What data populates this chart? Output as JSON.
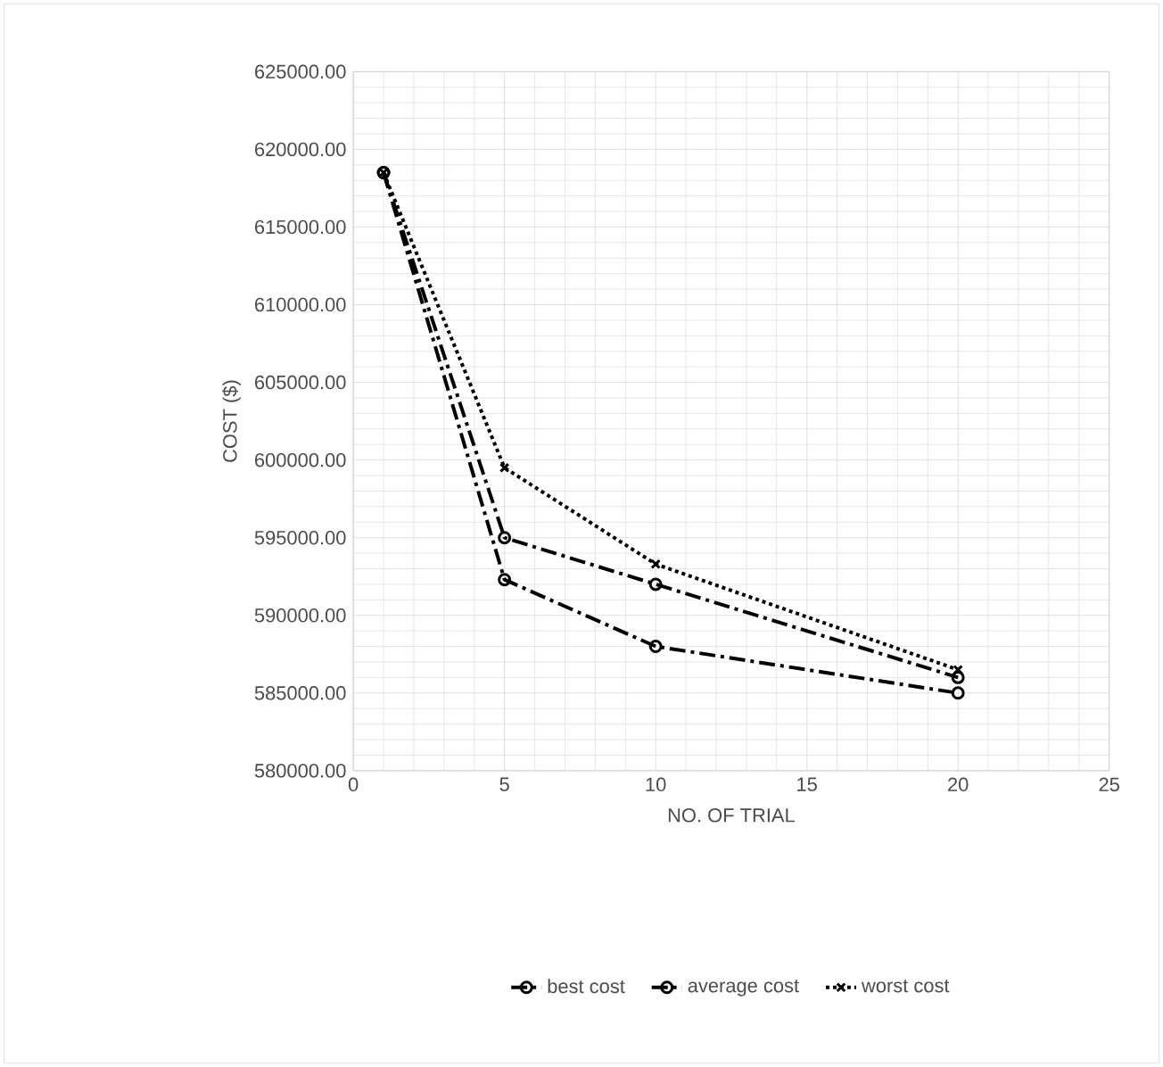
{
  "chart_data": {
    "type": "line",
    "xlabel": "NO. OF TRIAL",
    "ylabel": "COST ($)",
    "x": [
      1,
      5,
      10,
      20
    ],
    "series": [
      {
        "name": "best cost",
        "color": "#000000",
        "values": [
          618500,
          592300,
          588000,
          585000
        ],
        "line_style": "dashed",
        "marker": "circle"
      },
      {
        "name": "average cost",
        "color": "#000000",
        "values": [
          618500,
          595000,
          592000,
          586000
        ],
        "line_style": "dashed",
        "marker": "circle"
      },
      {
        "name": "worst cost",
        "color": "#000000",
        "values": [
          618500,
          599500,
          593300,
          586500
        ],
        "line_style": "dotted",
        "marker": "cross"
      }
    ],
    "xlim": [
      0,
      25
    ],
    "xticks": [
      0,
      5,
      10,
      15,
      20,
      25
    ],
    "ylim": [
      580000,
      625000
    ],
    "yticks": [
      {
        "value": 580000,
        "label": "580000.00"
      },
      {
        "value": 585000,
        "label": "585000.00"
      },
      {
        "value": 590000,
        "label": "590000.00"
      },
      {
        "value": 595000,
        "label": "595000.00"
      },
      {
        "value": 600000,
        "label": "600000.00"
      },
      {
        "value": 605000,
        "label": "605000.00"
      },
      {
        "value": 610000,
        "label": "610000.00"
      },
      {
        "value": 615000,
        "label": "615000.00"
      },
      {
        "value": 620000,
        "label": "620000.00"
      },
      {
        "value": 625000,
        "label": "625000.00"
      }
    ],
    "grid": true,
    "legend": "bottom"
  }
}
